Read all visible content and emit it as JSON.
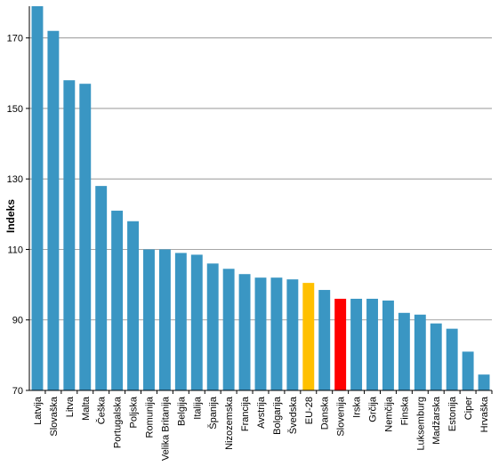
{
  "chart_data": {
    "type": "bar",
    "title": "",
    "xlabel": "",
    "ylabel": "Indeks",
    "ylim": [
      70,
      179
    ],
    "yticks": [
      70,
      90,
      110,
      130,
      150,
      170
    ],
    "grid": true,
    "legend": "none",
    "default_color": "#3a96c3",
    "categories": [
      "Latvija",
      "Slovaška",
      "Litva",
      "Malta",
      "Češka",
      "Portugalska",
      "Poljska",
      "Romunija",
      "Velika Britanija",
      "Belgija",
      "Italija",
      "Španija",
      "Nizozemska",
      "Francija",
      "Avstrija",
      "Bolgarija",
      "Švedska",
      "EU-28",
      "Danska",
      "Slovenija",
      "Irska",
      "Grčija",
      "Nemčija",
      "Finska",
      "Luksemburg",
      "Madžarska",
      "Estonija",
      "Ciper",
      "Hrvaška"
    ],
    "values": [
      179,
      172,
      158,
      157,
      128,
      121,
      118,
      110,
      110,
      109,
      108.5,
      106,
      104.5,
      103,
      102,
      102,
      101.5,
      100.5,
      98.5,
      96,
      96,
      96,
      95.5,
      92,
      91.5,
      89,
      87.5,
      81,
      74.5
    ],
    "highlight": {
      "EU-28": "#ffc000",
      "Slovenija": "#ff0000"
    }
  }
}
